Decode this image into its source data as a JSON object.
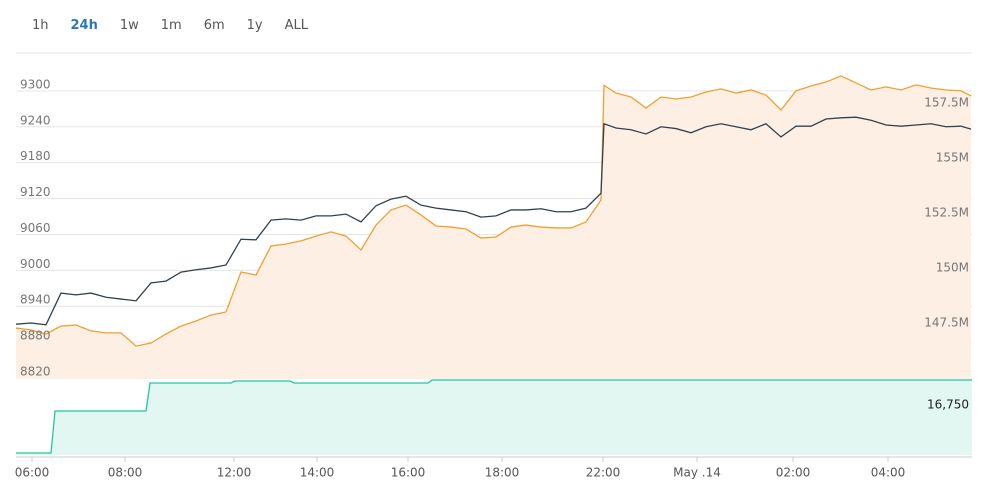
{
  "range_buttons": [
    "1h",
    "24h",
    "1w",
    "1m",
    "6m",
    "1y",
    "ALL"
  ],
  "active_button": 1,
  "chart_data": [
    {
      "type": "line",
      "x": [
        0,
        15,
        30,
        45,
        60,
        75,
        90,
        105,
        120,
        135,
        150,
        165,
        180,
        195,
        210,
        225,
        240,
        255,
        270,
        285,
        300,
        315,
        330,
        345,
        360,
        375,
        390,
        405,
        420,
        435,
        450,
        465,
        480,
        495,
        510,
        525,
        540,
        555,
        570,
        585,
        588,
        600,
        615,
        630,
        645,
        660,
        675,
        690,
        705,
        720,
        735,
        750,
        765,
        780,
        795,
        810,
        825,
        840,
        855,
        870,
        885,
        900,
        915,
        930,
        945,
        955
      ],
      "xlim": [
        0,
        956
      ],
      "ylim": [
        8820,
        9360
      ],
      "yticks": [
        8820,
        8880,
        8940,
        9000,
        9060,
        9120,
        9180,
        9240,
        9300
      ],
      "grid": true,
      "y2lim": [
        145,
        159.68
      ],
      "y2ticks": [
        {
          "value": 147.5,
          "label": "147.5M"
        },
        {
          "value": 150,
          "label": "150M"
        },
        {
          "value": 152.5,
          "label": "152.5M"
        },
        {
          "value": 155,
          "label": "155M"
        },
        {
          "value": 157.5,
          "label": "157.5M"
        }
      ],
      "series": [
        {
          "color": "#33414e",
          "values": [
            8910,
            8912,
            8909,
            8962,
            8959,
            8962,
            8955,
            8952,
            8949,
            8979,
            8982,
            8997,
            9001,
            9004,
            9009,
            9052,
            9051,
            9084,
            9086,
            9084,
            9091,
            9091,
            9094,
            9081,
            9108,
            9119,
            9124,
            9109,
            9104,
            9101,
            9098,
            9089,
            9091,
            9101,
            9101,
            9103,
            9098,
            9098,
            9104,
            9129,
            9245,
            9238,
            9235,
            9228,
            9240,
            9237,
            9230,
            9240,
            9245,
            9240,
            9235,
            9245,
            9223,
            9241,
            9241,
            9253,
            9255,
            9256,
            9251,
            9243,
            9241,
            9243,
            9245,
            9240,
            9241,
            9236
          ]
        },
        {
          "color": "#f0a030",
          "fill": "#fdefe3",
          "axis": "y2",
          "values": [
            147.27,
            147.18,
            147.0,
            147.36,
            147.41,
            147.14,
            147.05,
            147.05,
            146.45,
            146.59,
            147.0,
            147.36,
            147.59,
            147.86,
            148.0,
            149.82,
            149.68,
            151.0,
            151.09,
            151.23,
            151.45,
            151.64,
            151.45,
            150.82,
            151.95,
            152.64,
            152.86,
            152.41,
            151.91,
            151.86,
            151.77,
            151.36,
            151.41,
            151.86,
            151.95,
            151.86,
            151.82,
            151.82,
            152.09,
            153.09,
            158.3,
            157.95,
            157.77,
            157.27,
            157.77,
            157.68,
            157.77,
            158.0,
            158.14,
            157.95,
            158.09,
            157.86,
            157.18,
            158.05,
            158.27,
            158.45,
            158.73,
            158.41,
            158.09,
            158.23,
            158.09,
            158.32,
            158.18,
            158.09,
            158.05,
            157.82
          ]
        }
      ]
    },
    {
      "type": "area",
      "color": "#27c4a0",
      "fill": "#e2f7f1",
      "x": [
        0,
        35,
        39,
        130,
        134,
        215,
        219,
        274,
        278,
        412,
        416,
        956
      ],
      "values": [
        16702,
        16702,
        16744,
        16744,
        16772,
        16772,
        16774,
        16774,
        16772,
        16772,
        16775,
        16775
      ],
      "xlim": [
        0,
        956
      ],
      "ylim": [
        16700,
        16775
      ],
      "yticks": [
        {
          "value": 16750,
          "label": "16,750"
        }
      ],
      "xticks": [
        {
          "value": 16,
          "label": "06:00"
        },
        {
          "value": 109,
          "label": "08:00"
        },
        {
          "value": 218,
          "label": "12:00"
        },
        {
          "value": 301,
          "label": "14:00"
        },
        {
          "value": 392,
          "label": "16:00"
        },
        {
          "value": 486,
          "label": "18:00"
        },
        {
          "value": 587,
          "label": "22:00"
        },
        {
          "value": 681,
          "label": "May .14"
        },
        {
          "value": 777,
          "label": "02:00"
        },
        {
          "value": 872,
          "label": "04:00"
        }
      ]
    }
  ]
}
